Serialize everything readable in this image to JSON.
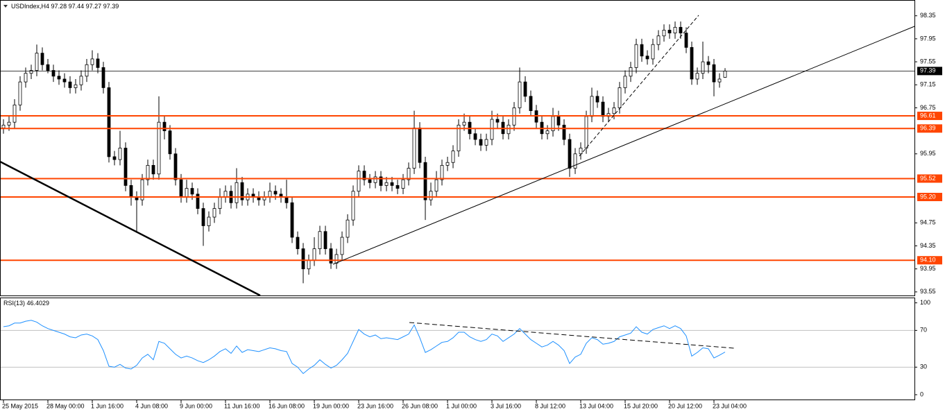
{
  "chart_data": [
    {
      "type": "candlestick",
      "title": "USDIndex,H4",
      "categories": [
        "25 May 2015",
        null,
        null,
        null,
        null,
        null,
        null,
        null,
        "28 May 00:00",
        null,
        null,
        null,
        null,
        null,
        null,
        null,
        "1 Jun 16:00",
        null,
        null,
        null,
        null,
        null,
        null,
        null,
        "4 Jun 08:00",
        null,
        null,
        null,
        null,
        null,
        null,
        null,
        "9 Jun 00:00",
        null,
        null,
        null,
        null,
        null,
        null,
        null,
        "11 Jun 16:00",
        null,
        null,
        null,
        null,
        null,
        null,
        null,
        "16 Jun 08:00",
        null,
        null,
        null,
        null,
        null,
        null,
        null,
        "19 Jun 00:00",
        null,
        null,
        null,
        null,
        null,
        null,
        null,
        "23 Jun 16:00",
        null,
        null,
        null,
        null,
        null,
        null,
        null,
        "26 Jun 08:00",
        null,
        null,
        null,
        null,
        null,
        null,
        null,
        "1 Jul 00:00",
        null,
        null,
        null,
        null,
        null,
        null,
        null,
        "3 Jul 16:00",
        null,
        null,
        null,
        null,
        null,
        null,
        null,
        "8 Jul 12:00",
        null,
        null,
        null,
        null,
        null,
        null,
        null,
        "13 Jul 04:00",
        null,
        null,
        null,
        null,
        null,
        null,
        null,
        "15 Jul 20:00",
        null,
        null,
        null,
        null,
        null,
        null,
        null,
        "20 Jul 12:00",
        null,
        null,
        null,
        null,
        null,
        null,
        null,
        "23 Jul 04:00",
        null,
        null
      ],
      "open": [
        96.4,
        96.45,
        96.5,
        96.8,
        97.2,
        97.35,
        97.4,
        97.7,
        97.5,
        97.4,
        97.3,
        97.25,
        97.2,
        97.1,
        97.15,
        97.3,
        97.5,
        97.6,
        97.45,
        97.1,
        95.9,
        95.85,
        96.05,
        95.4,
        95.2,
        95.15,
        95.5,
        95.75,
        95.6,
        96.5,
        96.35,
        95.95,
        95.5,
        95.2,
        95.35,
        95.25,
        95.0,
        94.7,
        94.85,
        95.0,
        95.2,
        95.3,
        95.1,
        95.45,
        95.15,
        95.25,
        95.2,
        95.15,
        95.2,
        95.3,
        95.25,
        95.2,
        95.1,
        94.5,
        94.3,
        93.95,
        94.1,
        94.3,
        94.6,
        94.3,
        94.05,
        94.2,
        94.5,
        94.8,
        95.3,
        95.65,
        95.5,
        95.45,
        95.55,
        95.4,
        95.45,
        95.4,
        95.35,
        95.5,
        95.7,
        96.4,
        95.8,
        95.15,
        95.3,
        95.5,
        95.75,
        95.8,
        96.0,
        96.45,
        96.5,
        96.3,
        96.2,
        96.1,
        96.2,
        96.55,
        96.5,
        96.3,
        96.45,
        96.75,
        97.2,
        96.95,
        96.7,
        96.5,
        96.3,
        96.35,
        96.6,
        96.45,
        96.2,
        95.7,
        95.95,
        96.05,
        96.6,
        96.95,
        96.85,
        96.6,
        96.65,
        96.75,
        97.1,
        97.3,
        97.45,
        97.85,
        97.65,
        97.6,
        97.85,
        98.0,
        98.1,
        98.05,
        98.15,
        98.05,
        97.8,
        97.25,
        97.35,
        97.55,
        97.5,
        97.2,
        97.28
      ],
      "high": [
        96.55,
        96.6,
        96.9,
        97.3,
        97.45,
        97.5,
        97.85,
        97.8,
        97.6,
        97.5,
        97.4,
        97.35,
        97.3,
        97.25,
        97.4,
        97.6,
        97.75,
        97.7,
        97.55,
        97.2,
        96.0,
        96.35,
        96.15,
        95.5,
        95.3,
        95.6,
        95.85,
        95.85,
        96.95,
        96.6,
        96.45,
        96.05,
        95.6,
        95.5,
        95.45,
        95.35,
        95.1,
        94.95,
        95.1,
        95.35,
        95.4,
        95.4,
        95.7,
        95.55,
        95.35,
        95.35,
        95.3,
        95.3,
        95.45,
        95.4,
        95.35,
        95.5,
        95.2,
        94.6,
        94.4,
        94.2,
        94.5,
        94.7,
        94.7,
        94.4,
        94.3,
        94.6,
        94.9,
        95.4,
        95.75,
        95.75,
        95.6,
        95.65,
        95.65,
        95.55,
        95.55,
        95.5,
        95.6,
        95.8,
        96.7,
        96.5,
        95.9,
        95.45,
        95.65,
        95.85,
        95.9,
        96.1,
        96.55,
        96.65,
        96.6,
        96.4,
        96.3,
        96.3,
        96.7,
        96.65,
        96.6,
        96.55,
        96.85,
        97.45,
        97.3,
        97.05,
        96.8,
        96.6,
        96.45,
        96.75,
        96.7,
        96.55,
        96.3,
        96.05,
        96.15,
        96.7,
        97.1,
        97.05,
        96.95,
        96.75,
        96.85,
        97.2,
        97.4,
        97.55,
        97.95,
        97.95,
        97.75,
        97.95,
        98.1,
        98.2,
        98.2,
        98.25,
        98.25,
        98.15,
        97.9,
        97.45,
        97.9,
        97.65,
        97.6,
        97.35,
        97.44
      ],
      "low": [
        96.3,
        96.35,
        96.4,
        96.7,
        97.1,
        97.25,
        97.3,
        97.4,
        97.35,
        97.2,
        97.15,
        97.1,
        97.0,
        97.0,
        97.05,
        97.2,
        97.4,
        97.35,
        97.0,
        95.8,
        95.75,
        95.75,
        95.3,
        95.05,
        94.6,
        95.05,
        95.4,
        95.5,
        95.5,
        96.2,
        95.85,
        95.4,
        95.1,
        95.1,
        95.15,
        94.9,
        94.35,
        94.6,
        94.75,
        94.9,
        95.1,
        95.0,
        95.0,
        95.05,
        95.05,
        95.1,
        95.05,
        95.05,
        95.1,
        95.15,
        95.1,
        95.0,
        94.4,
        94.2,
        93.7,
        93.85,
        94.0,
        94.2,
        94.2,
        93.95,
        93.95,
        94.1,
        94.4,
        94.7,
        95.2,
        95.4,
        95.35,
        95.35,
        95.3,
        95.3,
        95.3,
        95.25,
        95.25,
        95.4,
        95.6,
        95.7,
        94.8,
        95.05,
        95.2,
        95.4,
        95.65,
        95.7,
        95.9,
        96.35,
        96.2,
        96.1,
        96.0,
        96.0,
        96.1,
        96.4,
        96.2,
        96.2,
        96.35,
        96.65,
        96.85,
        96.6,
        96.4,
        96.2,
        96.2,
        96.25,
        96.35,
        96.1,
        95.55,
        95.6,
        95.85,
        95.95,
        96.5,
        96.75,
        96.5,
        96.5,
        96.55,
        96.65,
        97.0,
        97.2,
        97.35,
        97.55,
        97.5,
        97.5,
        97.75,
        97.9,
        97.95,
        97.95,
        97.95,
        97.7,
        97.15,
        97.15,
        97.25,
        97.35,
        96.95,
        97.1,
        97.27
      ],
      "close": [
        96.45,
        96.5,
        96.8,
        97.2,
        97.35,
        97.4,
        97.7,
        97.5,
        97.4,
        97.3,
        97.25,
        97.2,
        97.1,
        97.15,
        97.3,
        97.5,
        97.6,
        97.45,
        97.1,
        95.9,
        95.85,
        96.05,
        95.4,
        95.2,
        95.15,
        95.5,
        95.75,
        95.6,
        96.5,
        96.35,
        95.95,
        95.5,
        95.2,
        95.35,
        95.25,
        95.0,
        94.7,
        94.85,
        95.0,
        95.2,
        95.3,
        95.1,
        95.45,
        95.15,
        95.25,
        95.2,
        95.15,
        95.2,
        95.3,
        95.25,
        95.2,
        95.1,
        94.5,
        94.3,
        93.95,
        94.1,
        94.3,
        94.6,
        94.3,
        94.05,
        94.2,
        94.5,
        94.8,
        95.3,
        95.65,
        95.5,
        95.45,
        95.55,
        95.4,
        95.45,
        95.4,
        95.35,
        95.5,
        95.7,
        96.4,
        95.8,
        95.15,
        95.3,
        95.5,
        95.75,
        95.8,
        96.0,
        96.45,
        96.5,
        96.3,
        96.2,
        96.1,
        96.2,
        96.55,
        96.5,
        96.3,
        96.45,
        96.75,
        97.2,
        96.95,
        96.7,
        96.5,
        96.3,
        96.35,
        96.6,
        96.45,
        96.2,
        95.7,
        95.95,
        96.05,
        96.6,
        96.95,
        96.85,
        96.6,
        96.65,
        96.75,
        97.1,
        97.3,
        97.45,
        97.85,
        97.65,
        97.6,
        97.85,
        98.0,
        98.1,
        98.05,
        98.15,
        98.05,
        97.8,
        97.25,
        97.35,
        97.55,
        97.5,
        97.2,
        97.25,
        97.39
      ],
      "ylim": [
        93.5,
        98.6
      ],
      "yticks": [
        98.35,
        97.95,
        97.55,
        97.15,
        96.75,
        95.95,
        94.75,
        94.35,
        93.95,
        93.55
      ],
      "levels": [
        96.61,
        96.39,
        95.52,
        {
          "value": 95.2,
          "label": "95.20"
        },
        {
          "value": 94.1,
          "label": "94.10"
        }
      ],
      "level_color": "#ff4500",
      "up_color": "#ffffff",
      "down_color": "#000000"
    },
    {
      "type": "line",
      "title": "RSI(13)",
      "color": "#1e90ff",
      "values": [
        74,
        75,
        78,
        78,
        80,
        81,
        79,
        75,
        72,
        70,
        68,
        66,
        63,
        62,
        65,
        66,
        64,
        60,
        48,
        31,
        30,
        33,
        29,
        28,
        32,
        40,
        44,
        38,
        58,
        56,
        50,
        44,
        40,
        42,
        40,
        37,
        35,
        38,
        42,
        47,
        50,
        45,
        53,
        46,
        49,
        48,
        47,
        49,
        51,
        50,
        48,
        47,
        34,
        30,
        23,
        28,
        32,
        38,
        33,
        29,
        32,
        38,
        45,
        58,
        71,
        66,
        63,
        65,
        61,
        62,
        61,
        60,
        63,
        66,
        76,
        62,
        46,
        49,
        53,
        57,
        58,
        62,
        68,
        68,
        63,
        60,
        58,
        60,
        66,
        64,
        58,
        62,
        66,
        72,
        66,
        60,
        56,
        52,
        54,
        58,
        54,
        48,
        34,
        41,
        44,
        56,
        62,
        60,
        55,
        56,
        58,
        63,
        65,
        67,
        74,
        68,
        66,
        71,
        73,
        75,
        72,
        75,
        72,
        64,
        42,
        46,
        51,
        50,
        40,
        43,
        46.4029
      ],
      "ylim": [
        -6,
        105
      ],
      "yticks": [
        100,
        70,
        30,
        0
      ],
      "levels": [
        70,
        30
      ]
    }
  ]
}
